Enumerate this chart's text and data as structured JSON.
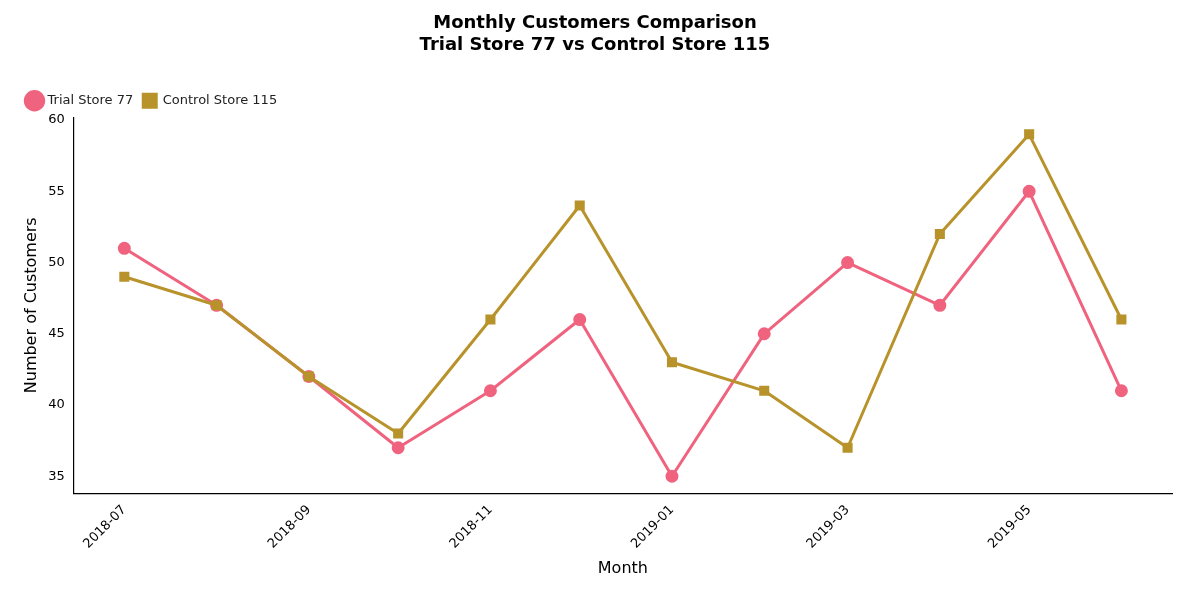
{
  "chart_data": {
    "type": "line",
    "title": "Monthly Customers Comparison\nTrial Store 77 vs Control Store 115",
    "xlabel": "Month",
    "ylabel": "Number of Customers",
    "x": [
      "2018-07",
      "2018-08",
      "2018-09",
      "2018-10",
      "2018-11",
      "2018-12",
      "2019-01",
      "2019-02",
      "2019-03",
      "2019-04",
      "2019-05",
      "2019-06"
    ],
    "series": [
      {
        "name": "Trial Store 77",
        "color": "#f0637f",
        "marker": "circle",
        "values": [
          51,
          47,
          42,
          37,
          41,
          46,
          35,
          45,
          50,
          47,
          55,
          41
        ]
      },
      {
        "name": "Control Store 115",
        "color": "#b8922a",
        "marker": "square",
        "values": [
          49,
          47,
          42,
          38,
          46,
          54,
          43,
          41,
          37,
          52,
          59,
          46
        ]
      }
    ],
    "xlim": [
      "2018-06-14",
      "2019-06-18"
    ],
    "xticks": [
      "2018-07",
      "2018-09",
      "2018-11",
      "2019-01",
      "2019-03",
      "2019-05"
    ],
    "ylim": [
      33.8,
      60.2
    ],
    "yticks": [
      35,
      40,
      45,
      50,
      55,
      60
    ],
    "grid": false,
    "legend": "top left",
    "line_style": "solid"
  }
}
